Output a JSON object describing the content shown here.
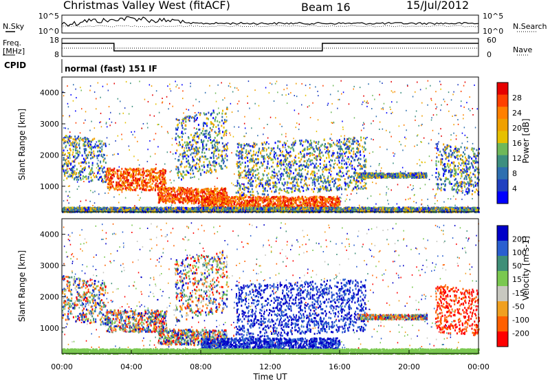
{
  "header": {
    "title": "Christmas Valley West (fitACF)",
    "beam": "Beam 16",
    "date": "15/Jul/2012"
  },
  "left_labels": {
    "nsky": "N.Sky",
    "freq_line1": "Freq.",
    "freq_line2": "[MHz]",
    "cpid": "CPID"
  },
  "right_labels": {
    "nsearch": "N.Search",
    "nave": "Nave"
  },
  "cpid_text": "normal (fast) 151 IF",
  "chart_data": [
    {
      "type": "line",
      "name": "noise",
      "ylim_left_ticks": [
        "10^5",
        "10^0"
      ],
      "ylim_right_ticks": [
        "10^5",
        "10^0"
      ],
      "note_series": [
        "N.Sky",
        "N.Search"
      ]
    },
    {
      "type": "line",
      "name": "freq-nave",
      "left_ticks": [
        "18",
        "8"
      ],
      "right_ticks": [
        "60",
        "0"
      ],
      "freq_steps": [
        {
          "t0": 0,
          "t1": 3.0,
          "level": "high"
        },
        {
          "t0": 3.0,
          "t1": 15.0,
          "level": "low"
        },
        {
          "t0": 15.0,
          "t1": 24,
          "level": "high"
        }
      ]
    },
    {
      "type": "heatmap",
      "name": "power",
      "xlabel": "",
      "ylabel": "Slant Range [km]",
      "ylim": [
        180,
        4500
      ],
      "yticks": [
        1000,
        2000,
        3000,
        4000
      ],
      "colorbar_label": "Power [dB]",
      "colorbar_ticks": [
        "28",
        "24",
        "20",
        "16",
        "12",
        "8",
        "4"
      ],
      "colorbar_colors": [
        "#e60000",
        "#ff4000",
        "#ff8000",
        "#f0a000",
        "#e6c000",
        "#6fb85a",
        "#3d8f80",
        "#2d6fb0",
        "#2040c0",
        "#0000ff"
      ]
    },
    {
      "type": "heatmap",
      "name": "velocity",
      "xlabel": "Time UT",
      "ylabel": "Slant Range [km]",
      "ylim": [
        180,
        4500
      ],
      "yticks": [
        1000,
        2000,
        3000,
        4000
      ],
      "xticks": [
        "00:00",
        "04:00",
        "08:00",
        "12:00",
        "16:00",
        "20:00",
        "00:00"
      ],
      "colorbar_label": "Velocity [m s-1]",
      "colorbar_ticks": [
        "200",
        "100",
        "50",
        "15",
        "-15",
        "-50",
        "-100",
        "-200"
      ],
      "colorbar_colors": [
        "#0000c8",
        "#2a5fd0",
        "#3f8f78",
        "#7ac850",
        "#c8c8c0",
        "#f0a020",
        "#ff6000",
        "#ff0000"
      ]
    }
  ]
}
